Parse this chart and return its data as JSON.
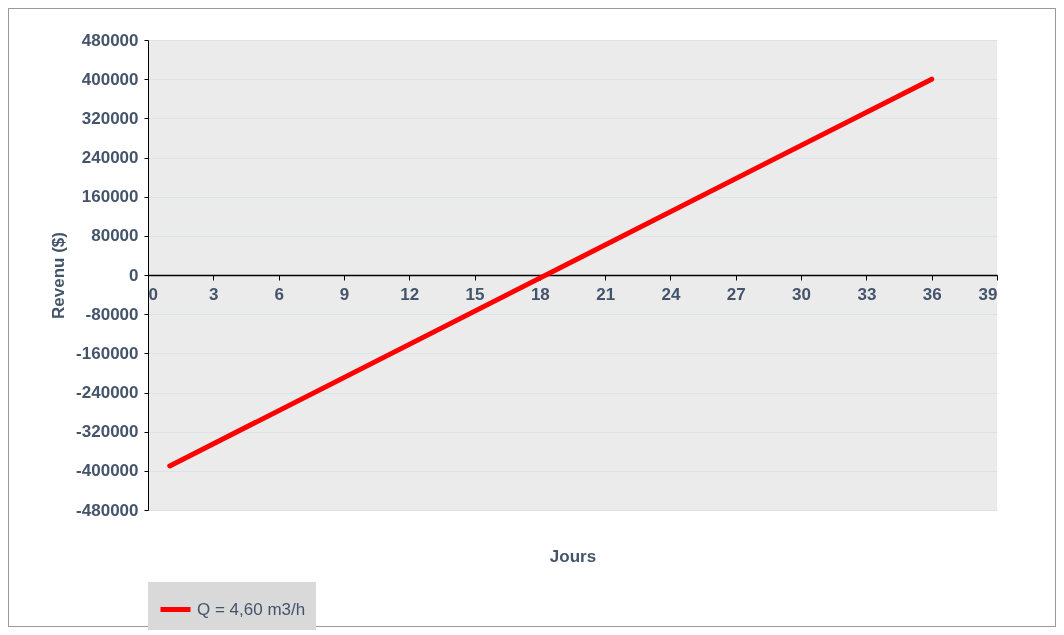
{
  "chart_data": {
    "type": "line",
    "xlabel": "Jours",
    "ylabel": "Revenu ($)",
    "x": [
      1,
      36
    ],
    "series": [
      {
        "name": "Q = 4,60 m3/h",
        "color": "#ff0000",
        "values": [
          -390000,
          400000
        ]
      }
    ],
    "xlim": [
      0,
      39
    ],
    "xticks": [
      0,
      3,
      6,
      9,
      12,
      15,
      18,
      21,
      24,
      27,
      30,
      33,
      36,
      39
    ],
    "ylim": [
      -480000,
      480000
    ],
    "yticks": [
      -480000,
      -400000,
      -320000,
      -240000,
      -160000,
      -80000,
      0,
      80000,
      160000,
      240000,
      320000,
      400000,
      480000
    ],
    "grid": "y",
    "legend": "bottom",
    "marker": "none",
    "line_style": "solid"
  }
}
